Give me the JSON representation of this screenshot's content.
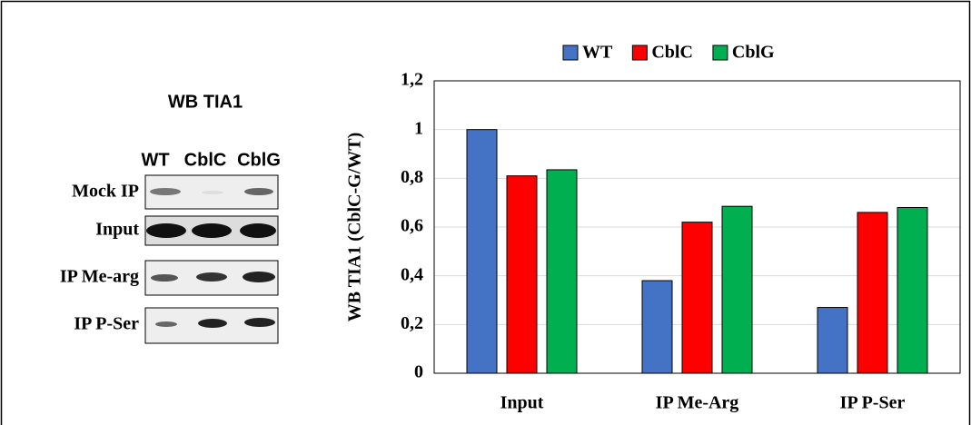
{
  "blot": {
    "title": "WB TIA1",
    "lanes": [
      "WT",
      "CblC",
      "CblG"
    ],
    "rows": [
      "Mock IP",
      "Input",
      "IP Me-arg",
      "IP P-Ser"
    ]
  },
  "chart_data": {
    "type": "bar",
    "ylabel": "WB TIA1 (CblC-G/WT)",
    "categories": [
      "Input",
      "IP Me-Arg",
      "IP P-Ser"
    ],
    "series": [
      {
        "name": "WT",
        "color": "#4472c4",
        "values": [
          1.0,
          0.38,
          0.27
        ]
      },
      {
        "name": "CblC",
        "color": "#ff0000",
        "values": [
          0.81,
          0.62,
          0.66
        ]
      },
      {
        "name": "CblG",
        "color": "#00b050",
        "values": [
          0.835,
          0.685,
          0.68
        ]
      }
    ],
    "ylim": [
      0,
      1.2
    ],
    "yticks": [
      0,
      {
        "value": 0.2,
        "label": "0,2"
      },
      {
        "value": 0.4,
        "label": "0,4"
      },
      {
        "value": 0.6,
        "label": "0,6"
      },
      {
        "value": 0.8,
        "label": "0,8"
      },
      1,
      {
        "value": 1.2,
        "label": "1,2"
      }
    ],
    "grid": true,
    "legend": "top"
  }
}
